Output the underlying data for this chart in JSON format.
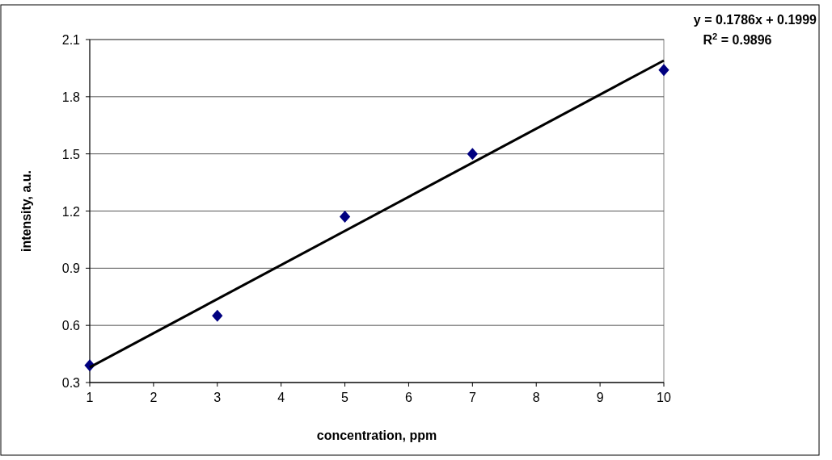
{
  "chart_data": {
    "type": "scatter",
    "xlabel": "concentration, ppm",
    "ylabel": "intensity, a.u.",
    "x": [
      1,
      3,
      5,
      7,
      10
    ],
    "series": [
      {
        "color": "#000080",
        "values": [
          0.39,
          0.65,
          1.17,
          1.5,
          1.94
        ],
        "marker": "diamond"
      },
      {
        "type": "line",
        "color": "#000000",
        "x": [
          1,
          10
        ],
        "values": [
          0.38,
          1.99
        ],
        "marker": "none",
        "line_style": "solid"
      }
    ],
    "xlim": [
      1,
      10
    ],
    "xticks": [
      1,
      2,
      3,
      4,
      5,
      6,
      7,
      8,
      9,
      10
    ],
    "ylim": [
      0.3,
      2.1
    ],
    "yticks": [
      0.3,
      0.6,
      0.9,
      1.2,
      1.5,
      1.8,
      2.1
    ],
    "grid": "y",
    "annotations": [
      "y = 0.1786x + 0.1999",
      "R$^{2}$ = 0.9896"
    ]
  }
}
